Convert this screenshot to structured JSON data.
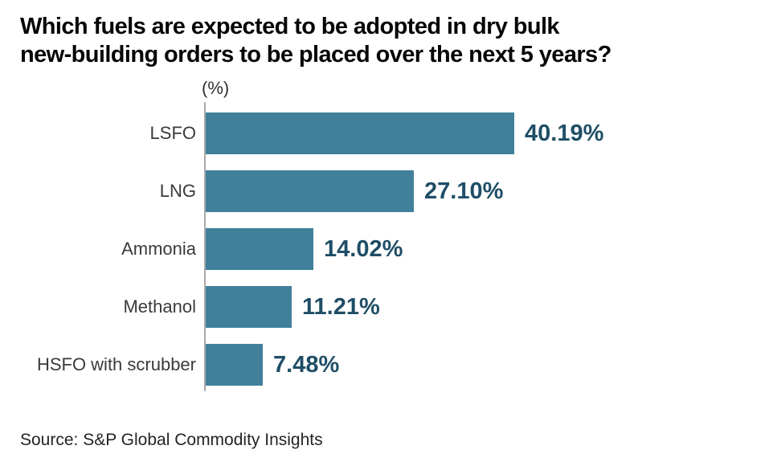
{
  "header": {
    "title_line1": "Which fuels are expected to be adopted in dry bulk",
    "title_line2": "new-building orders to be placed over the next 5 years?"
  },
  "source": {
    "text": "Source: S&P Global Commodity Insights"
  },
  "colors": {
    "bar": "#41809b",
    "value_text": "#1f4e66",
    "axis": "#a9a9a9",
    "category_text": "#3a3a3a",
    "title_text": "#060606"
  },
  "chart_data": {
    "type": "bar",
    "orientation": "horizontal",
    "title": "Which fuels are expected to be adopted in dry bulk new-building orders to be placed over the next 5 years?",
    "unit_label": "(%)",
    "categories": [
      "LSFO",
      "LNG",
      "Ammonia",
      "Methanol",
      "HSFO with scrubber"
    ],
    "values": [
      40.19,
      27.1,
      14.02,
      11.21,
      7.48
    ],
    "value_labels": [
      "40.19%",
      "27.10%",
      "14.02%",
      "11.21%",
      "7.48%"
    ],
    "xlabel": "",
    "ylabel": "",
    "xlim": [
      0,
      42
    ],
    "grid": false,
    "legend": false,
    "source": "Source: S&P Global Commodity Insights"
  }
}
